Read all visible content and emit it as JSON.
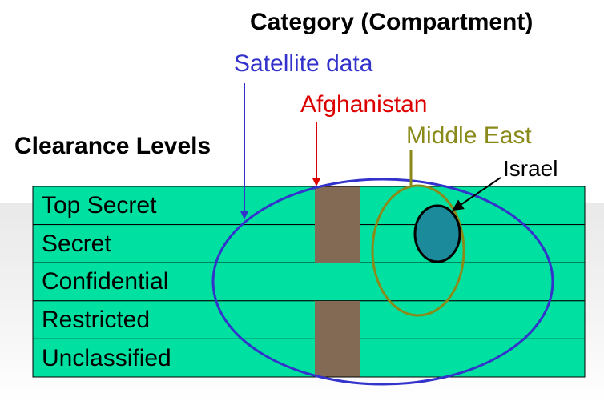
{
  "diagram": {
    "category_title": "Category (Compartment)",
    "clearance_title": "Clearance Levels",
    "levels": [
      "Top Secret",
      "Secret",
      "Confidential",
      "Restricted",
      "Unclassified"
    ],
    "compartments": {
      "satellite": "Satellite data",
      "afghanistan": "Afghanistan",
      "middle_east": "Middle East",
      "israel": "Israel"
    },
    "colors": {
      "level_fill": "#00e0a0",
      "afghanistan_band": "#826a55",
      "satellite": "#3333cc",
      "afghanistan": "#dd0000",
      "middle_east": "#8a8a1a",
      "israel_fill": "#1b8a9a",
      "israel_stroke": "#000000"
    }
  }
}
